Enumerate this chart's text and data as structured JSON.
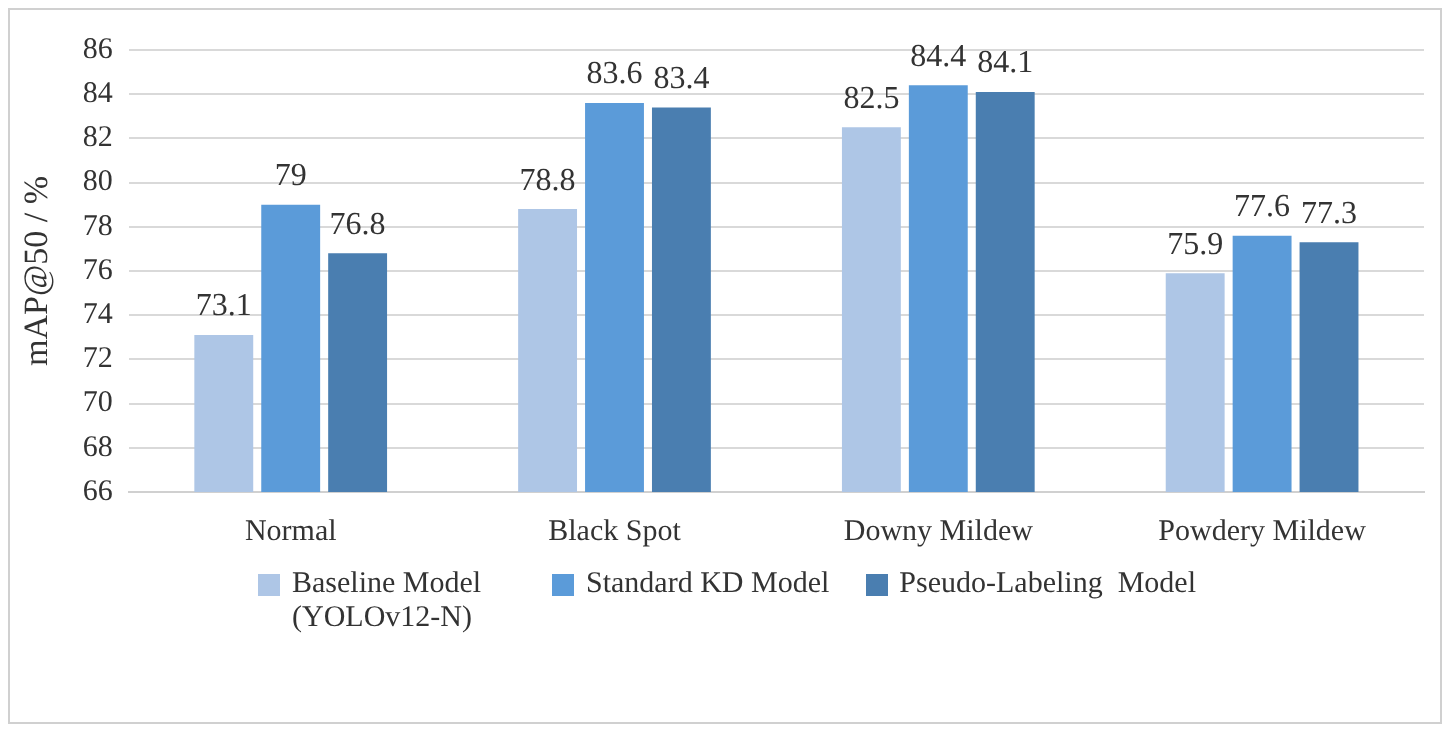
{
  "chart_data": {
    "type": "bar",
    "ylabel": "mAP@50 / %",
    "categories": [
      "Normal",
      "Black Spot",
      "Downy Mildew",
      "Powdery Mildew"
    ],
    "series": [
      {
        "name": "Baseline Model (YOLOv12-N)",
        "color": "#aec6e6",
        "values": [
          73.1,
          78.8,
          82.5,
          75.9
        ]
      },
      {
        "name": "Standard KD Model",
        "color": "#5b9bd9",
        "values": [
          79,
          83.6,
          84.4,
          77.6
        ]
      },
      {
        "name": "Pseudo-Labeling  Model",
        "color": "#4a7eb0",
        "values": [
          76.8,
          83.4,
          84.1,
          77.3
        ]
      }
    ],
    "ylim": [
      66,
      86
    ],
    "yticks": [
      66,
      68,
      70,
      72,
      74,
      76,
      78,
      80,
      82,
      84,
      86
    ],
    "grid": "y",
    "legend": "bottom",
    "data_labels": true
  }
}
